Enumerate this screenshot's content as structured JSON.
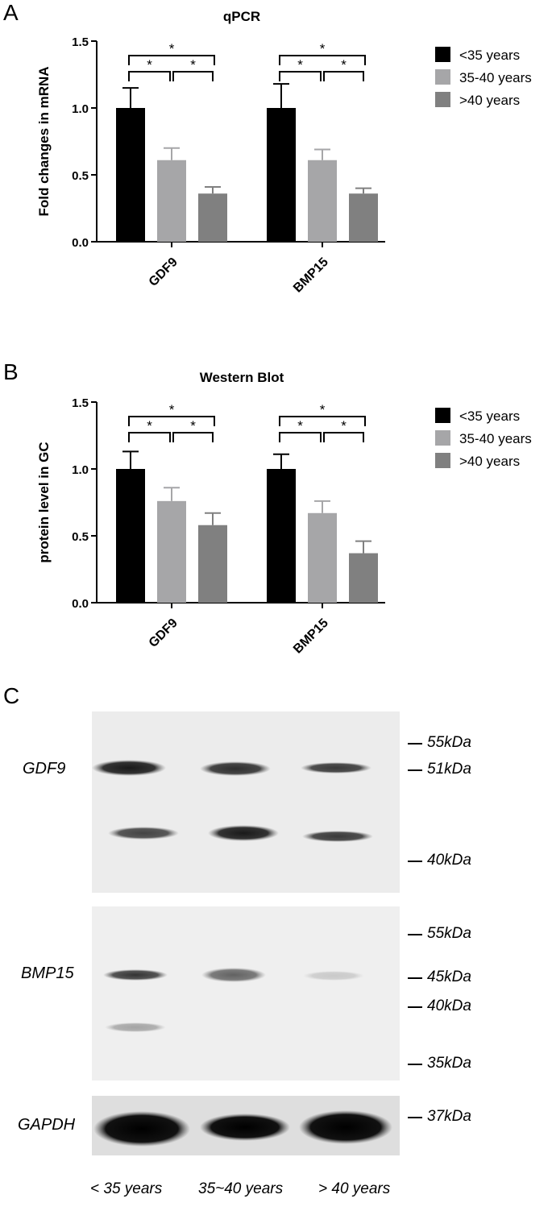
{
  "panels": {
    "a": "A",
    "b": "B",
    "c": "C"
  },
  "chart_data": [
    {
      "type": "bar",
      "title": "qPCR",
      "ylabel": "Fold changes in mRNA",
      "xlabel": "",
      "ylim": [
        0,
        1.5
      ],
      "yticks": [
        "0.0",
        "0.5",
        "1.0",
        "1.5"
      ],
      "categories": [
        "GDF9",
        "BMP15"
      ],
      "series": [
        {
          "name": "<35 years",
          "color": "#000000",
          "values": [
            1.0,
            1.0
          ],
          "errors": [
            0.15,
            0.18
          ]
        },
        {
          "name": "35-40 years",
          "color": "#a6a6a8",
          "values": [
            0.61,
            0.61
          ],
          "errors": [
            0.09,
            0.08
          ]
        },
        {
          "name": ">40 years",
          "color": "#808080",
          "values": [
            0.36,
            0.36
          ],
          "errors": [
            0.05,
            0.04
          ]
        }
      ],
      "significance_marker": "*",
      "legend_position": "right"
    },
    {
      "type": "bar",
      "title": "Western Blot",
      "ylabel": "protein level in GC",
      "xlabel": "",
      "ylim": [
        0,
        1.5
      ],
      "yticks": [
        "0.0",
        "0.5",
        "1.0",
        "1.5"
      ],
      "categories": [
        "GDF9",
        "BMP15"
      ],
      "series": [
        {
          "name": "<35 years",
          "color": "#000000",
          "values": [
            1.0,
            1.0
          ],
          "errors": [
            0.13,
            0.11
          ]
        },
        {
          "name": "35-40 years",
          "color": "#a6a6a8",
          "values": [
            0.76,
            0.67
          ],
          "errors": [
            0.1,
            0.09
          ]
        },
        {
          "name": ">40 years",
          "color": "#808080",
          "values": [
            0.58,
            0.37
          ],
          "errors": [
            0.09,
            0.09
          ]
        }
      ],
      "significance_marker": "*",
      "legend_position": "right"
    }
  ],
  "blot": {
    "gdf9_label": "GDF9",
    "bmp15_label": "BMP15",
    "gapdh_label": "GAPDH",
    "gdf9_markers": [
      "55kDa",
      "51kDa",
      "40kDa"
    ],
    "bmp15_markers": [
      "55kDa",
      "45kDa",
      "40kDa",
      "35kDa"
    ],
    "gapdh_markers": [
      "37kDa"
    ],
    "lanes": [
      "< 35 years",
      "35~40 years",
      "> 40 years"
    ]
  }
}
